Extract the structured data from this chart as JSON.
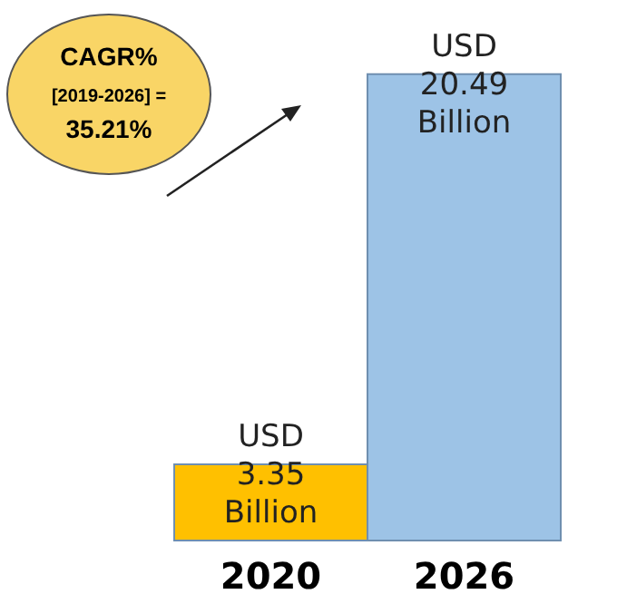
{
  "chart_data": {
    "type": "bar",
    "categories": [
      "2020",
      "2026"
    ],
    "values": [
      3.35,
      20.49
    ],
    "colors": [
      "#ffc000",
      "#9dc3e6"
    ],
    "value_labels": [
      "USD\n3.35\nBillion",
      "USD\n20.49\nBillion"
    ],
    "annotations": [
      "CAGR%",
      "[2019-2026] =",
      "35.21%"
    ]
  }
}
